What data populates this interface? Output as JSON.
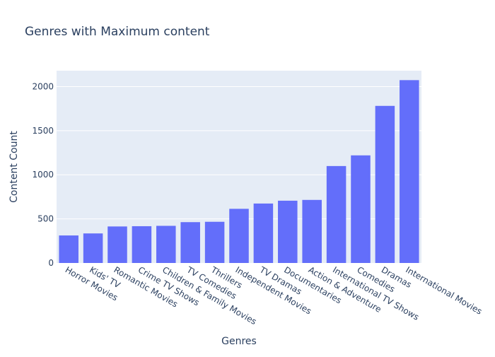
{
  "chart_data": {
    "type": "bar",
    "title": "Genres with Maximum content",
    "xlabel": "Genres",
    "ylabel": "Content Count",
    "ylim": [
      0,
      2180
    ],
    "yticks": [
      0,
      500,
      1000,
      1500,
      2000
    ],
    "grid": true,
    "categories": [
      "Horror Movies",
      "Kids' TV",
      "Romantic Movies",
      "Crime TV Shows",
      "Children & Family Movies",
      "TV Comedies",
      "Thrillers",
      "Independent Movies",
      "TV Dramas",
      "Documentaries",
      "Action & Adventure",
      "International TV Shows",
      "Comedies",
      "Dramas",
      "International Movies"
    ],
    "values": [
      312,
      335,
      414,
      417,
      421,
      463,
      467,
      614,
      674,
      706,
      715,
      1099,
      1220,
      1781,
      2073
    ],
    "colors": {
      "bar": "#636efa",
      "plot_bg": "#e5ecf6",
      "grid": "#ffffff",
      "text": "#2a3f5f"
    }
  }
}
